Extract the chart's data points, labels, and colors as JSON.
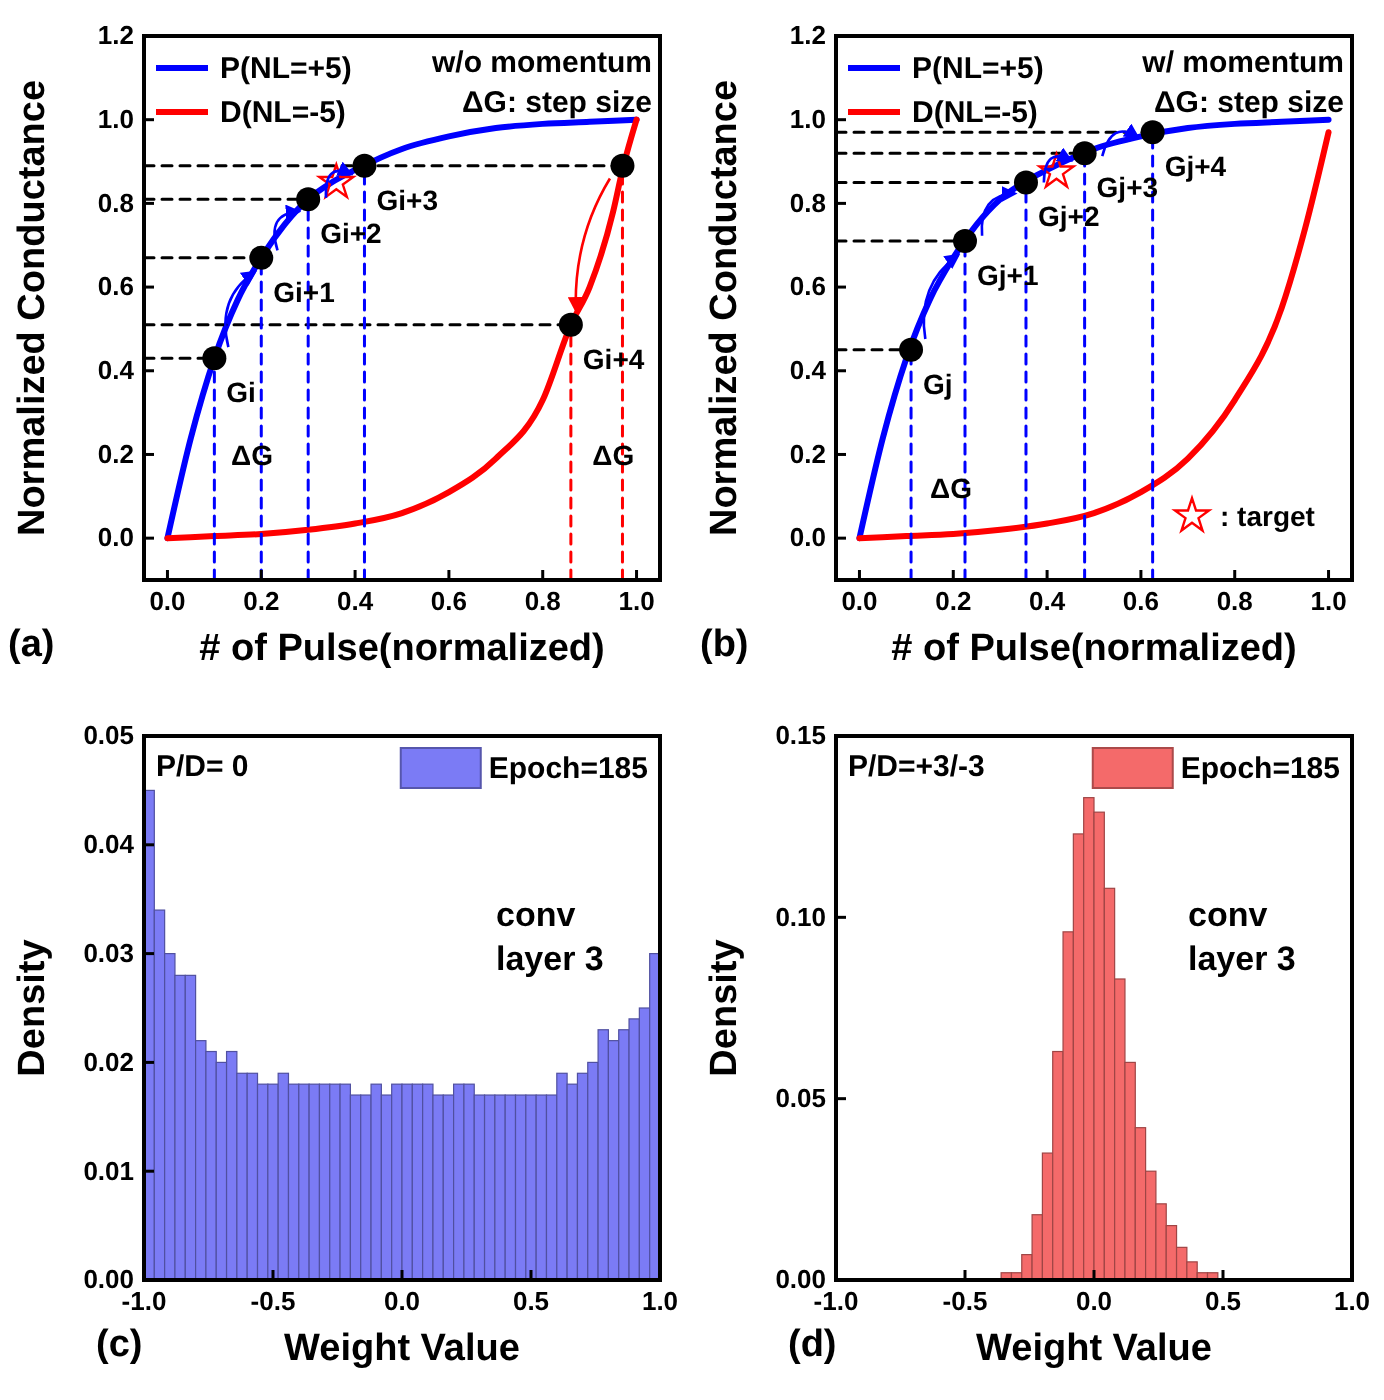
{
  "chart_data": [
    {
      "type": "line",
      "xlabel": "# of Pulse(normalized)",
      "ylabel": "Normalized Conductance",
      "xlim": [
        -0.05,
        1.05
      ],
      "ylim": [
        -0.1,
        1.2
      ],
      "xticks": [
        {
          "value": 0,
          "label": "0.0"
        },
        {
          "value": 0.2,
          "label": "0.2"
        },
        {
          "value": 0.4,
          "label": "0.4"
        },
        {
          "value": 0.6,
          "label": "0.6"
        },
        {
          "value": 0.8,
          "label": "0.8"
        },
        {
          "value": 1,
          "label": "1.0"
        }
      ],
      "yticks": [
        {
          "value": 0,
          "label": "0.0"
        },
        {
          "value": 0.2,
          "label": "0.2"
        },
        {
          "value": 0.4,
          "label": "0.4"
        },
        {
          "value": 0.6,
          "label": "0.6"
        },
        {
          "value": 0.8,
          "label": "0.8"
        },
        {
          "value": 1,
          "label": "1.0"
        },
        {
          "value": 1.2,
          "label": "1.2"
        }
      ],
      "legend": "top left",
      "series": [
        {
          "name": "P(NL=+5)",
          "color": "#0000ff",
          "line_style": "solid",
          "x": [
            0,
            0.05,
            0.1,
            0.15,
            0.2,
            0.25,
            0.3,
            0.35,
            0.4,
            0.5,
            0.6,
            0.7,
            0.8,
            0.9,
            1.0
          ],
          "values": [
            0,
            0.24,
            0.43,
            0.57,
            0.67,
            0.75,
            0.81,
            0.85,
            0.88,
            0.93,
            0.96,
            0.98,
            0.99,
            0.995,
            1.0
          ]
        },
        {
          "name": "D(NL=-5)",
          "color": "#ff0000",
          "line_style": "solid",
          "x": [
            0,
            0.1,
            0.2,
            0.3,
            0.4,
            0.5,
            0.6,
            0.7,
            0.8,
            0.86,
            0.9,
            0.95,
            0.97,
            1.0
          ],
          "values": [
            0,
            0.005,
            0.01,
            0.02,
            0.035,
            0.06,
            0.11,
            0.19,
            0.33,
            0.51,
            0.6,
            0.78,
            0.88,
            1.0
          ]
        },
        {
          "color": "#000000",
          "line_style": "dashed",
          "x": [
            -0.05,
            0.1
          ],
          "values": [
            0.43,
            0.43
          ]
        },
        {
          "color": "#000000",
          "line_style": "dashed",
          "x": [
            -0.05,
            0.2
          ],
          "values": [
            0.67,
            0.67
          ]
        },
        {
          "color": "#000000",
          "line_style": "dashed",
          "x": [
            -0.05,
            0.3
          ],
          "values": [
            0.81,
            0.81
          ]
        },
        {
          "color": "#000000",
          "line_style": "dashed",
          "x": [
            -0.05,
            0.97
          ],
          "values": [
            0.89,
            0.89
          ]
        },
        {
          "color": "#000000",
          "line_style": "dashed",
          "x": [
            -0.05,
            0.86
          ],
          "values": [
            0.51,
            0.51
          ]
        },
        {
          "color": "#0000ff",
          "line_style": "dashed",
          "x": [
            0.1,
            0.1
          ],
          "values": [
            -0.1,
            0.43
          ]
        },
        {
          "color": "#0000ff",
          "line_style": "dashed",
          "x": [
            0.2,
            0.2
          ],
          "values": [
            -0.1,
            0.67
          ]
        },
        {
          "color": "#0000ff",
          "line_style": "dashed",
          "x": [
            0.3,
            0.3
          ],
          "values": [
            -0.1,
            0.81
          ]
        },
        {
          "color": "#0000ff",
          "line_style": "dashed",
          "x": [
            0.42,
            0.42
          ],
          "values": [
            -0.1,
            0.89
          ]
        },
        {
          "color": "#ff0000",
          "line_style": "dashed",
          "x": [
            0.86,
            0.86
          ],
          "values": [
            -0.1,
            0.51
          ]
        },
        {
          "color": "#ff0000",
          "line_style": "dashed",
          "x": [
            0.97,
            0.97
          ],
          "values": [
            -0.1,
            0.89
          ]
        },
        {
          "type": "scatter",
          "marker": "circle",
          "color": "#000000",
          "x": [
            0.1,
            0.2,
            0.3,
            0.42
          ],
          "values": [
            0.43,
            0.67,
            0.81,
            0.89
          ]
        },
        {
          "type": "scatter",
          "marker": "circle",
          "color": "#000000",
          "x": [
            0.97,
            0.86
          ],
          "values": [
            0.89,
            0.51
          ]
        },
        {
          "type": "scatter",
          "marker": "star",
          "color": "#ff0000",
          "x": [
            0.36
          ],
          "values": [
            0.85
          ]
        }
      ],
      "annotations": [
        "w/o momentum",
        "ΔG: step size",
        "(a)",
        {
          "text": "Gi",
          "x": 0.1,
          "y": 0.43
        },
        {
          "text": "Gi+1",
          "x": 0.2,
          "y": 0.67
        },
        {
          "text": "Gi+2",
          "x": 0.3,
          "y": 0.81
        },
        {
          "text": "Gi+3",
          "x": 0.42,
          "y": 0.89
        },
        {
          "text": "Gi+4",
          "x": 0.86,
          "y": 0.51
        },
        {
          "text": "ΔG",
          "x": 0.11,
          "y": 0.28
        },
        {
          "text": "ΔG",
          "x": 0.88,
          "y": 0.28
        }
      ]
    },
    {
      "type": "line",
      "xlabel": "# of Pulse(normalized)",
      "ylabel": "Normalized Conductance",
      "xlim": [
        -0.05,
        1.05
      ],
      "ylim": [
        -0.1,
        1.2
      ],
      "xticks": [
        {
          "value": 0,
          "label": "0.0"
        },
        {
          "value": 0.2,
          "label": "0.2"
        },
        {
          "value": 0.4,
          "label": "0.4"
        },
        {
          "value": 0.6,
          "label": "0.6"
        },
        {
          "value": 0.8,
          "label": "0.8"
        },
        {
          "value": 1,
          "label": "1.0"
        }
      ],
      "yticks": [
        {
          "value": 0,
          "label": "0.0"
        },
        {
          "value": 0.2,
          "label": "0.2"
        },
        {
          "value": 0.4,
          "label": "0.4"
        },
        {
          "value": 0.6,
          "label": "0.6"
        },
        {
          "value": 0.8,
          "label": "0.8"
        },
        {
          "value": 1,
          "label": "1.0"
        },
        {
          "value": 1.2,
          "label": "1.2"
        }
      ],
      "legend": "top left",
      "series": [
        {
          "name": "P(NL=+5)",
          "color": "#0000ff",
          "line_style": "solid",
          "x": [
            0,
            0.05,
            0.1,
            0.15,
            0.2,
            0.25,
            0.3,
            0.35,
            0.4,
            0.5,
            0.6,
            0.7,
            0.8,
            0.9,
            1.0
          ],
          "values": [
            0,
            0.24,
            0.43,
            0.57,
            0.67,
            0.75,
            0.81,
            0.85,
            0.88,
            0.93,
            0.96,
            0.98,
            0.99,
            0.995,
            1.0
          ]
        },
        {
          "name": "D(NL=-5)",
          "color": "#ff0000",
          "line_style": "solid",
          "x": [
            0,
            0.1,
            0.2,
            0.3,
            0.4,
            0.5,
            0.6,
            0.7,
            0.8,
            0.9,
            0.95,
            1.0
          ],
          "values": [
            0,
            0.005,
            0.01,
            0.02,
            0.035,
            0.06,
            0.11,
            0.19,
            0.33,
            0.55,
            0.74,
            0.97
          ]
        },
        {
          "color": "#000000",
          "line_style": "dashed",
          "x": [
            -0.05,
            0.11
          ],
          "values": [
            0.45,
            0.45
          ]
        },
        {
          "color": "#000000",
          "line_style": "dashed",
          "x": [
            -0.05,
            0.225
          ],
          "values": [
            0.71,
            0.71
          ]
        },
        {
          "color": "#000000",
          "line_style": "dashed",
          "x": [
            -0.05,
            0.355
          ],
          "values": [
            0.85,
            0.85
          ]
        },
        {
          "color": "#000000",
          "line_style": "dashed",
          "x": [
            -0.05,
            0.48
          ],
          "values": [
            0.92,
            0.92
          ]
        },
        {
          "color": "#000000",
          "line_style": "dashed",
          "x": [
            -0.05,
            0.625
          ],
          "values": [
            0.97,
            0.97
          ]
        },
        {
          "color": "#0000ff",
          "line_style": "dashed",
          "x": [
            0.11,
            0.11
          ],
          "values": [
            -0.1,
            0.45
          ]
        },
        {
          "color": "#0000ff",
          "line_style": "dashed",
          "x": [
            0.225,
            0.225
          ],
          "values": [
            -0.1,
            0.71
          ]
        },
        {
          "color": "#0000ff",
          "line_style": "dashed",
          "x": [
            0.355,
            0.355
          ],
          "values": [
            -0.1,
            0.85
          ]
        },
        {
          "color": "#0000ff",
          "line_style": "dashed",
          "x": [
            0.48,
            0.48
          ],
          "values": [
            -0.1,
            0.92
          ]
        },
        {
          "color": "#0000ff",
          "line_style": "dashed",
          "x": [
            0.625,
            0.625
          ],
          "values": [
            -0.1,
            0.97
          ]
        },
        {
          "type": "scatter",
          "marker": "circle",
          "color": "#000000",
          "x": [
            0.11,
            0.225,
            0.355,
            0.48,
            0.625
          ],
          "values": [
            0.45,
            0.71,
            0.85,
            0.92,
            0.97
          ]
        },
        {
          "type": "scatter",
          "marker": "star",
          "color": "#ff0000",
          "name": ": target",
          "x": [
            0.42
          ],
          "values": [
            0.875
          ]
        }
      ],
      "annotations": [
        "w/ momentum",
        "ΔG: step size",
        "(b)",
        {
          "text": "Gj",
          "x": 0.11,
          "y": 0.45
        },
        {
          "text": "Gj+1",
          "x": 0.225,
          "y": 0.71
        },
        {
          "text": "Gj+2",
          "x": 0.355,
          "y": 0.85
        },
        {
          "text": "Gj+3",
          "x": 0.48,
          "y": 0.92
        },
        {
          "text": "Gj+4",
          "x": 0.625,
          "y": 0.97
        },
        {
          "text": "ΔG",
          "x": 0.125,
          "y": 0.2
        }
      ]
    },
    {
      "type": "histogram",
      "xlabel": "Weight Value",
      "ylabel": "Density",
      "xlim": [
        -1,
        1
      ],
      "ylim": [
        0,
        0.05
      ],
      "xticks": [
        {
          "value": -1,
          "label": "-1.0"
        },
        {
          "value": -0.5,
          "label": "-0.5"
        },
        {
          "value": 0,
          "label": "0.0"
        },
        {
          "value": 0.5,
          "label": "0.5"
        },
        {
          "value": 1,
          "label": "1.0"
        }
      ],
      "yticks": [
        {
          "value": 0,
          "label": "0.00"
        },
        {
          "value": 0.01,
          "label": "0.01"
        },
        {
          "value": 0.02,
          "label": "0.02"
        },
        {
          "value": 0.03,
          "label": "0.03"
        },
        {
          "value": 0.04,
          "label": "0.04"
        },
        {
          "value": 0.05,
          "label": "0.05"
        }
      ],
      "legend": "top right",
      "bins": [
        -1,
        -0.96,
        -0.92,
        -0.88,
        -0.84,
        -0.8,
        -0.76,
        -0.72,
        -0.68,
        -0.64,
        -0.6,
        -0.56,
        -0.52,
        -0.48,
        -0.44,
        -0.4,
        -0.36,
        -0.32,
        -0.28,
        -0.24,
        -0.2,
        -0.16,
        -0.12,
        -0.08,
        -0.04,
        0,
        0.04,
        0.08,
        0.12,
        0.16,
        0.2,
        0.24,
        0.28,
        0.32,
        0.36,
        0.4,
        0.44,
        0.48,
        0.52,
        0.56,
        0.6,
        0.64,
        0.68,
        0.72,
        0.76,
        0.8,
        0.84,
        0.88,
        0.92,
        0.96,
        1
      ],
      "series": [
        {
          "name": "Epoch=185",
          "color": "#7b7bf5",
          "values": [
            0.045,
            0.034,
            0.03,
            0.028,
            0.028,
            0.022,
            0.021,
            0.02,
            0.021,
            0.019,
            0.019,
            0.018,
            0.018,
            0.019,
            0.018,
            0.018,
            0.018,
            0.018,
            0.018,
            0.018,
            0.017,
            0.017,
            0.018,
            0.017,
            0.018,
            0.018,
            0.018,
            0.018,
            0.017,
            0.017,
            0.018,
            0.018,
            0.017,
            0.017,
            0.017,
            0.017,
            0.017,
            0.017,
            0.017,
            0.017,
            0.019,
            0.018,
            0.019,
            0.02,
            0.023,
            0.022,
            0.023,
            0.024,
            0.025,
            0.03
          ]
        }
      ],
      "annotations": [
        "P/D= 0",
        "conv layer 3",
        "(c)"
      ]
    },
    {
      "type": "histogram",
      "xlabel": "Weight Value",
      "ylabel": "Density",
      "xlim": [
        -1,
        1
      ],
      "ylim": [
        0,
        0.15
      ],
      "xticks": [
        {
          "value": -1,
          "label": "-1.0"
        },
        {
          "value": -0.5,
          "label": "-0.5"
        },
        {
          "value": 0,
          "label": "0.0"
        },
        {
          "value": 0.5,
          "label": "0.5"
        },
        {
          "value": 1,
          "label": "1.0"
        }
      ],
      "yticks": [
        {
          "value": 0,
          "label": "0.00"
        },
        {
          "value": 0.05,
          "label": "0.05"
        },
        {
          "value": 0.1,
          "label": "0.10"
        },
        {
          "value": 0.15,
          "label": "0.15"
        }
      ],
      "legend": "top right",
      "bins": [
        -0.36,
        -0.32,
        -0.28,
        -0.24,
        -0.2,
        -0.16,
        -0.12,
        -0.08,
        -0.04,
        0,
        0.04,
        0.08,
        0.12,
        0.16,
        0.2,
        0.24,
        0.28,
        0.32,
        0.36,
        0.4,
        0.44,
        0.48
      ],
      "series": [
        {
          "name": "Epoch=185",
          "color": "#f46a6a",
          "values": [
            0.002,
            0.002,
            0.007,
            0.018,
            0.035,
            0.063,
            0.096,
            0.123,
            0.133,
            0.129,
            0.108,
            0.083,
            0.06,
            0.042,
            0.03,
            0.021,
            0.015,
            0.009,
            0.005,
            0.002,
            0.002
          ]
        }
      ],
      "annotations": [
        "P/D=+3/-3",
        "conv layer 3",
        "(d)"
      ]
    }
  ]
}
